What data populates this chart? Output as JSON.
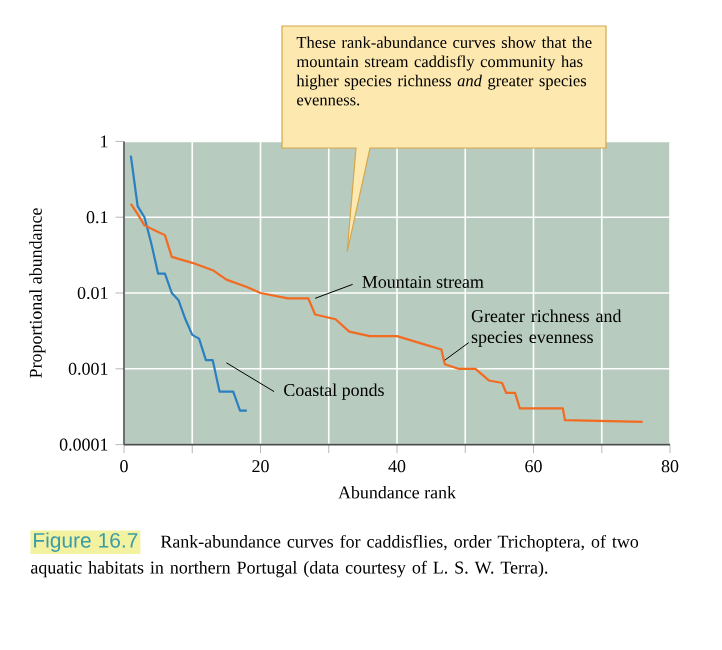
{
  "chart_data": {
    "type": "line",
    "xlabel": "Abundance rank",
    "ylabel": "Proportional abundance",
    "series": [
      {
        "name": "Coastal ponds",
        "color": "#2a7fc0",
        "x": [
          1,
          2,
          3,
          4,
          5,
          6,
          7,
          8,
          9,
          10,
          11,
          12,
          13,
          14,
          15,
          16,
          17,
          18
        ],
        "values": [
          0.65,
          0.14,
          0.1,
          0.045,
          0.018,
          0.018,
          0.01,
          0.008,
          0.0045,
          0.0028,
          0.0025,
          0.0013,
          0.0013,
          0.0005,
          0.0005,
          0.0005,
          0.00028,
          0.00028
        ]
      },
      {
        "name": "Mountain stream",
        "color": "#f26b21",
        "x": [
          1,
          2,
          3,
          5,
          6,
          7,
          10,
          13,
          15,
          18,
          20,
          24,
          27,
          28,
          31,
          33,
          36,
          40,
          44,
          46.5,
          47,
          49,
          51.5,
          53.5,
          55.4,
          56,
          57.3,
          58,
          64.3,
          64.6,
          76
        ],
        "values": [
          0.15,
          0.11,
          0.078,
          0.064,
          0.058,
          0.03,
          0.025,
          0.02,
          0.015,
          0.012,
          0.01,
          0.0085,
          0.0085,
          0.0052,
          0.0045,
          0.0031,
          0.0027,
          0.0027,
          0.0021,
          0.0018,
          0.00115,
          0.001,
          0.001,
          0.0007,
          0.00065,
          0.00048,
          0.00048,
          0.0003,
          0.0003,
          0.00021,
          0.0002
        ]
      }
    ],
    "xlim": [
      0,
      80
    ],
    "xticks": [
      0,
      {
        "value": 10,
        "label": null
      },
      20,
      {
        "value": 30,
        "label": null
      },
      40,
      {
        "value": 50,
        "label": null
      },
      60,
      {
        "value": 70,
        "label": null
      },
      80
    ],
    "ylim": [
      0.0001,
      1
    ],
    "yticks": [
      {
        "value": 0.0001,
        "label": "0.0001"
      },
      {
        "value": 0.001,
        "label": "0.001"
      },
      {
        "value": 0.01,
        "label": "0.01"
      },
      {
        "value": 0.1,
        "label": "0.1"
      },
      {
        "value": 1,
        "label": "1"
      }
    ],
    "log": "y",
    "grid": true,
    "marker": "none",
    "line_style": "solid",
    "annotations": [
      "These rank-abundance curves show that the mountain stream caddisfly community has higher species richness *and* greater species evenness.",
      {
        "text": "Greater richness and species evenness",
        "x": 47,
        "y": 0.0013
      },
      "Figure 16.7",
      "Rank-abundance curves for caddisflies, order Trichoptera, of two aquatic habitats in northern Portugal (data courtesy of L. S. W. Terra)."
    ]
  }
}
